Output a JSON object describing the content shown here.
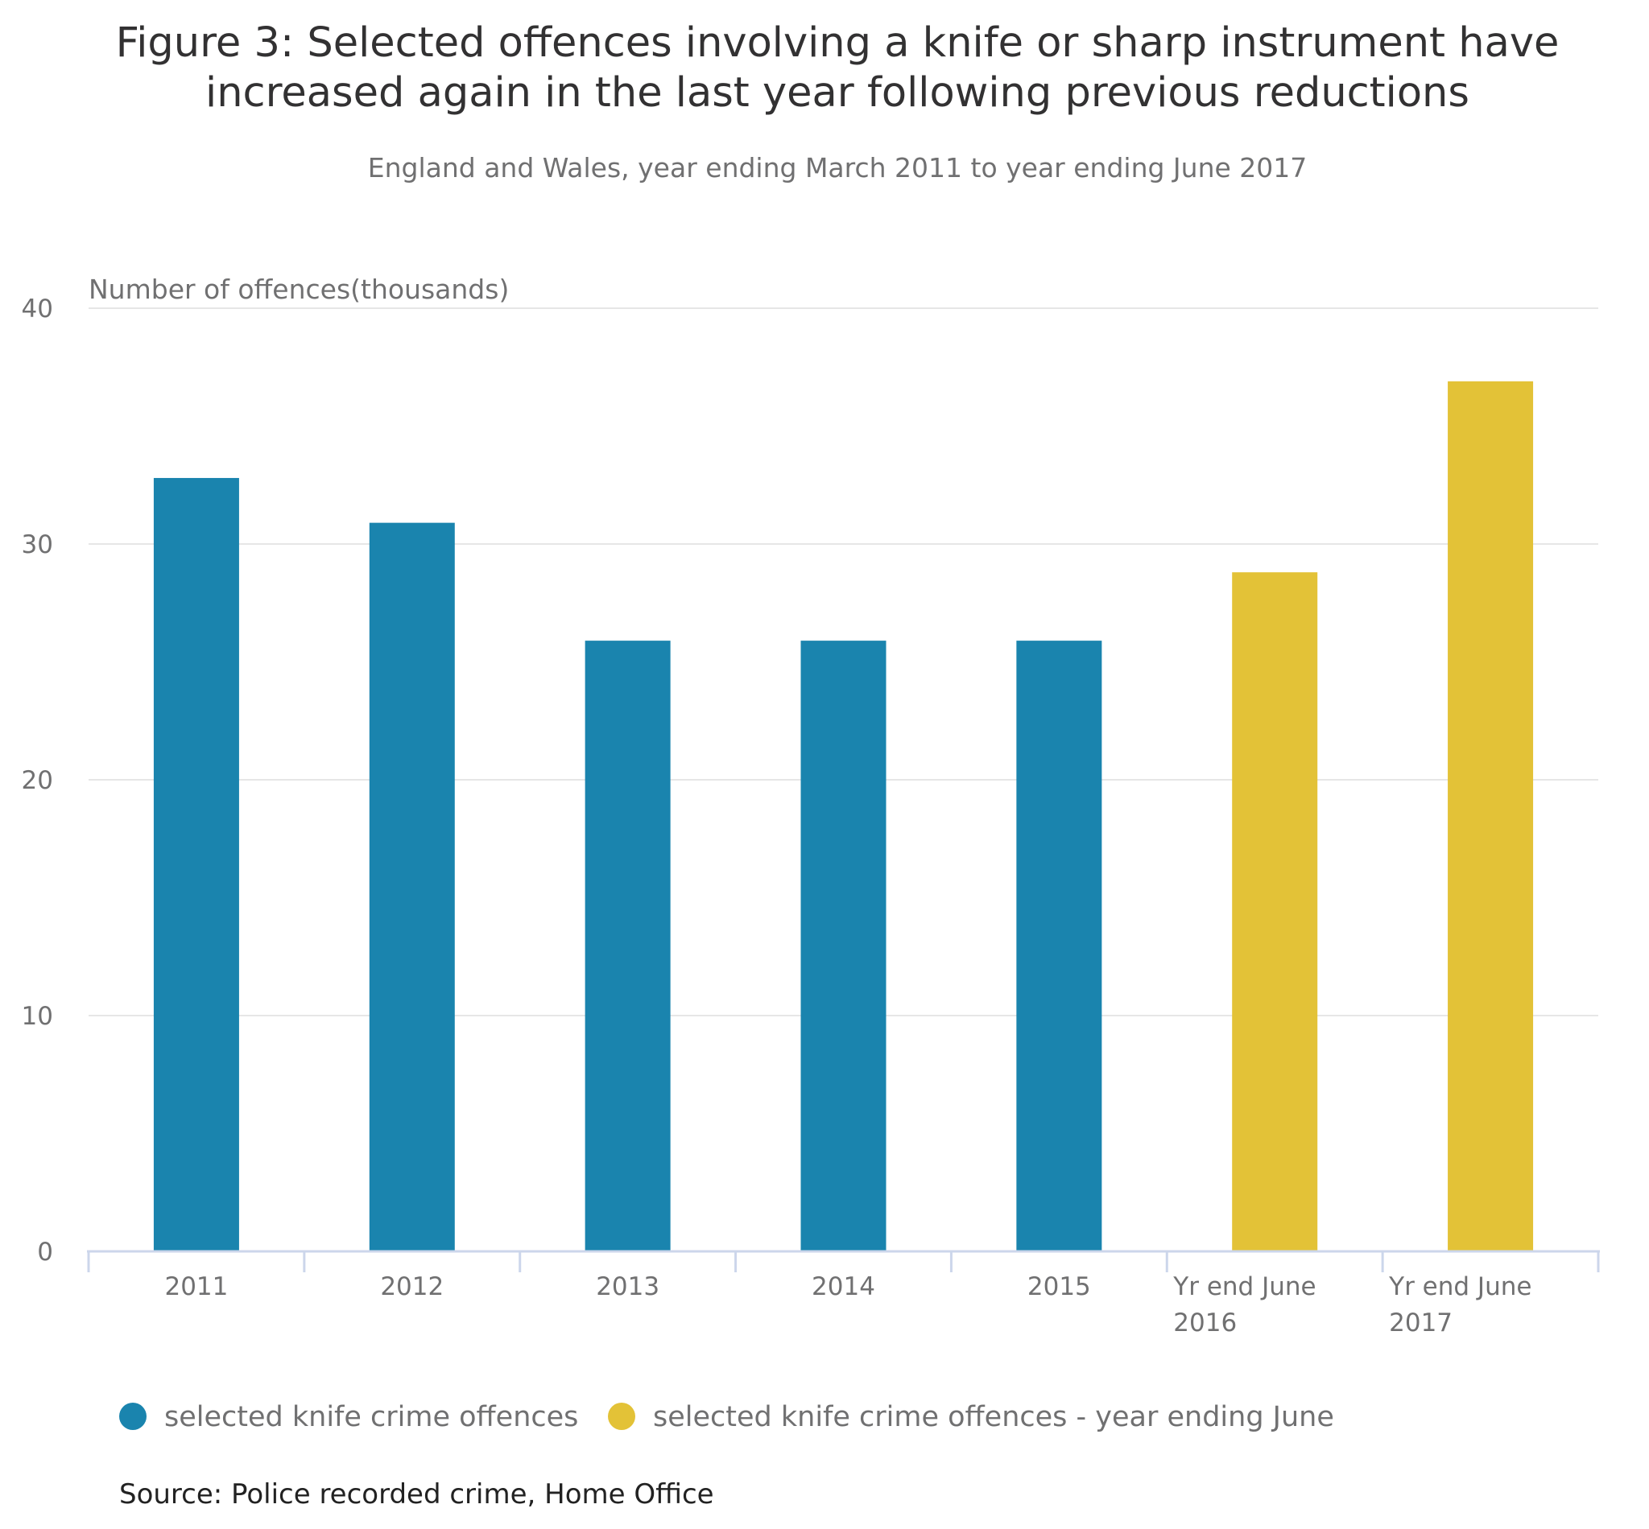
{
  "chart_data": {
    "type": "bar",
    "title": "Figure 3: Selected offences involving a knife or sharp instrument have increased again in the last year following previous reductions",
    "title_lines": [
      "Figure 3: Selected offences involving a knife or sharp instrument have",
      "increased again in the last year following previous reductions"
    ],
    "subtitle": "England and Wales, year ending March 2011 to year ending June 2017",
    "ylabel": "Number of offences(thousands)",
    "xlabel": "",
    "ylim": [
      0,
      40
    ],
    "yticks": [
      "0",
      "10",
      "20",
      "30",
      "40"
    ],
    "grid": true,
    "categories": [
      "2011",
      "2012",
      "2013",
      "2014",
      "2015",
      "Yr end June 2016",
      "Yr end June 2017"
    ],
    "category_lines": [
      [
        "2011"
      ],
      [
        "2012"
      ],
      [
        "2013"
      ],
      [
        "2014"
      ],
      [
        "2015"
      ],
      [
        "Yr end June",
        "2016"
      ],
      [
        "Yr end June",
        "2017"
      ]
    ],
    "series": [
      {
        "name": "selected knife crime offences",
        "color": "#1a84ae",
        "values": [
          32.8,
          30.9,
          25.9,
          25.9,
          25.9,
          null,
          null
        ]
      },
      {
        "name": "selected knife crime offences - year ending June",
        "color": "#e3c237",
        "values": [
          null,
          null,
          null,
          null,
          null,
          28.8,
          36.9
        ]
      }
    ],
    "legend_position": "bottom-left",
    "source": "Source: Police recorded crime, Home Office"
  }
}
